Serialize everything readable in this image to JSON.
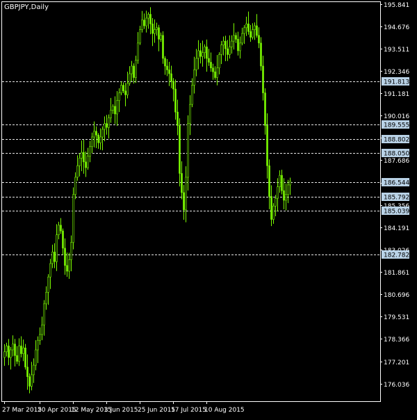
{
  "window": {
    "title": "GBPJPY,Daily"
  },
  "colors": {
    "background": "#000000",
    "frame": "#ffffff",
    "candle": "#7cfc00",
    "level_line": "#e6e6e6",
    "label_bg": "#b9d2e6",
    "label_text": "#000000",
    "axis_text": "#ffffff"
  },
  "chart_data": {
    "type": "candlestick",
    "symbol": "GBPJPY",
    "timeframe": "Daily",
    "y_axis_ticks": [
      "195.841",
      "194.676",
      "193.511",
      "192.346",
      "191.181",
      "190.016",
      "188.851",
      "187.686",
      "186.521",
      "185.356",
      "184.191",
      "183.026",
      "181.861",
      "180.696",
      "179.531",
      "178.366",
      "177.201",
      "176.036"
    ],
    "ylim": [
      175.3,
      195.9
    ],
    "x_axis_ticks": [
      "27 Mar 2015",
      "20 Apr 2015",
      "12 May 2015",
      "3 Jun 2015",
      "25 Jun 2015",
      "17 Jul 2015",
      "10 Aug 2015"
    ],
    "x_tick_bar_index": [
      0,
      17,
      33,
      49,
      65,
      81,
      97
    ],
    "level_lines": [
      {
        "label": "191.813",
        "value": 191.813
      },
      {
        "label": "189.555",
        "value": 189.555
      },
      {
        "label": "188.802",
        "value": 188.802
      },
      {
        "label": "188.050",
        "value": 188.05
      },
      {
        "label": "186.544",
        "value": 186.544
      },
      {
        "label": "185.792",
        "value": 185.792
      },
      {
        "label": "185.039",
        "value": 185.039
      },
      {
        "label": "182.782",
        "value": 182.782
      }
    ],
    "closes": [
      177.7,
      178.0,
      177.4,
      177.8,
      178.1,
      177.5,
      177.2,
      178.0,
      177.6,
      177.9,
      176.9,
      176.4,
      175.9,
      176.5,
      177.0,
      177.8,
      178.3,
      178.6,
      179.1,
      180.2,
      180.8,
      181.6,
      182.3,
      182.9,
      182.4,
      183.8,
      184.3,
      184.0,
      183.1,
      182.2,
      181.9,
      182.5,
      183.4,
      185.9,
      186.8,
      187.4,
      187.8,
      188.1,
      187.6,
      187.3,
      187.9,
      188.4,
      188.9,
      189.2,
      189.0,
      188.6,
      188.9,
      189.3,
      189.6,
      189.4,
      189.9,
      190.3,
      190.5,
      190.1,
      190.8,
      191.2,
      191.6,
      191.3,
      191.1,
      191.7,
      192.2,
      192.6,
      192.0,
      192.9,
      193.8,
      194.5,
      195.0,
      194.7,
      195.1,
      195.3,
      194.8,
      194.3,
      194.5,
      194.6,
      194.0,
      194.2,
      193.0,
      192.6,
      192.4,
      192.2,
      191.8,
      191.4,
      190.2,
      189.5,
      187.0,
      186.0,
      185.1,
      186.8,
      189.6,
      190.6,
      191.6,
      192.4,
      193.0,
      193.4,
      193.1,
      193.3,
      193.6,
      193.0,
      192.8,
      192.5,
      192.3,
      192.0,
      192.5,
      193.2,
      193.7,
      193.9,
      193.5,
      193.2,
      193.6,
      193.9,
      194.2,
      194.0,
      193.4,
      193.8,
      194.3,
      194.6,
      194.8,
      194.4,
      194.1,
      194.5,
      194.7,
      194.2,
      193.8,
      192.6,
      191.2,
      189.5,
      187.4,
      185.8,
      184.6,
      185.3,
      185.7,
      186.3,
      186.9,
      186.1,
      185.6,
      185.9,
      186.4,
      186.6
    ]
  }
}
